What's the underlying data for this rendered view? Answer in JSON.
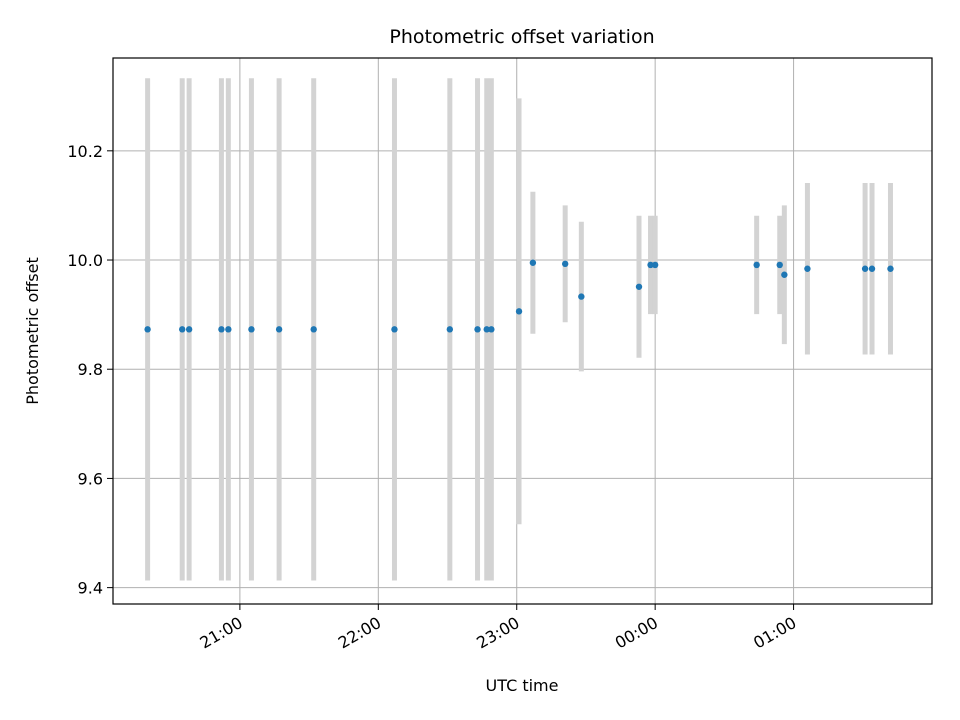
{
  "chart_data": {
    "type": "scatter",
    "title": "Photometric offset variation",
    "xlabel": "UTC time",
    "ylabel": "Photometric offset",
    "x_axis_kind": "time (HH:MM)",
    "xlim": [
      "20:05",
      "02:00"
    ],
    "ylim": [
      9.37,
      10.37
    ],
    "grid": true,
    "x_ticks": [
      "21:00",
      "22:00",
      "23:00",
      "00:00",
      "01:00"
    ],
    "y_ticks": [
      "9.4",
      "9.6",
      "9.8",
      "10.0",
      "10.2"
    ],
    "series": [
      {
        "marker_color": "#1f77b4",
        "errorbar_color": "#d3d3d3",
        "points": [
          {
            "x": "20:20",
            "y": 9.873,
            "yerr": 0.46
          },
          {
            "x": "20:35",
            "y": 9.873,
            "yerr": 0.46
          },
          {
            "x": "20:38",
            "y": 9.873,
            "yerr": 0.46
          },
          {
            "x": "20:52",
            "y": 9.873,
            "yerr": 0.46
          },
          {
            "x": "20:55",
            "y": 9.873,
            "yerr": 0.46
          },
          {
            "x": "21:05",
            "y": 9.873,
            "yerr": 0.46
          },
          {
            "x": "21:17",
            "y": 9.873,
            "yerr": 0.46
          },
          {
            "x": "21:32",
            "y": 9.873,
            "yerr": 0.46
          },
          {
            "x": "22:07",
            "y": 9.873,
            "yerr": 0.46
          },
          {
            "x": "22:31",
            "y": 9.873,
            "yerr": 0.46
          },
          {
            "x": "22:43",
            "y": 9.873,
            "yerr": 0.46
          },
          {
            "x": "22:47",
            "y": 9.873,
            "yerr": 0.46
          },
          {
            "x": "22:49",
            "y": 9.873,
            "yerr": 0.46
          },
          {
            "x": "23:01",
            "y": 9.906,
            "yerr": 0.39
          },
          {
            "x": "23:07",
            "y": 9.995,
            "yerr": 0.13
          },
          {
            "x": "23:21",
            "y": 9.993,
            "yerr": 0.107
          },
          {
            "x": "23:28",
            "y": 9.933,
            "yerr": 0.137
          },
          {
            "x": "23:53",
            "y": 9.951,
            "yerr": 0.13
          },
          {
            "x": "23:58",
            "y": 9.991,
            "yerr": 0.09
          },
          {
            "x": "00:00",
            "y": 9.991,
            "yerr": 0.09
          },
          {
            "x": "00:44",
            "y": 9.991,
            "yerr": 0.09
          },
          {
            "x": "00:54",
            "y": 9.991,
            "yerr": 0.09
          },
          {
            "x": "00:56",
            "y": 9.973,
            "yerr": 0.127
          },
          {
            "x": "01:06",
            "y": 9.984,
            "yerr": 0.157
          },
          {
            "x": "01:31",
            "y": 9.984,
            "yerr": 0.157
          },
          {
            "x": "01:34",
            "y": 9.984,
            "yerr": 0.157
          },
          {
            "x": "01:42",
            "y": 9.984,
            "yerr": 0.157
          }
        ]
      }
    ]
  }
}
